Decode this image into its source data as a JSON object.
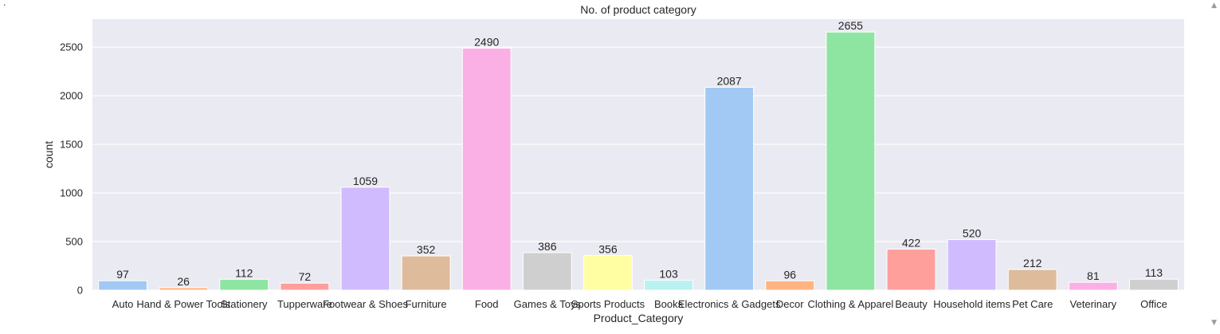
{
  "chart_data": {
    "type": "bar",
    "title": "No. of product category",
    "xlabel": "Product_Category",
    "ylabel": "count",
    "categories": [
      "Auto",
      "Hand & Power Tools",
      "Stationery",
      "Tupperware",
      "Footwear & Shoes",
      "Furniture",
      "Food",
      "Games & Toys",
      "Sports Products",
      "Books",
      "Electronics & Gadgets",
      "Decor",
      "Clothing & Apparel",
      "Beauty",
      "Household items",
      "Pet Care",
      "Veterinary",
      "Office"
    ],
    "values": [
      97,
      26,
      112,
      72,
      1059,
      352,
      2490,
      386,
      356,
      103,
      2087,
      96,
      2655,
      422,
      520,
      212,
      81,
      113
    ],
    "data_labels": [
      "97",
      "26",
      "112",
      "72",
      "1059",
      "352",
      "2490",
      "386",
      "356",
      "103",
      "2087",
      "96",
      "2655",
      "422",
      "520",
      "212",
      "81",
      "113"
    ],
    "colors": [
      "#a1c9f4",
      "#ffb482",
      "#8de5a1",
      "#ff9f9b",
      "#d0bbff",
      "#debb9b",
      "#fab0e4",
      "#cfcfcf",
      "#fffea3",
      "#b9f2f0",
      "#a1c9f4",
      "#ffb482",
      "#8de5a1",
      "#ff9f9b",
      "#d0bbff",
      "#debb9b",
      "#fab0e4",
      "#cfcfcf"
    ],
    "yticks": [
      0,
      500,
      1000,
      1500,
      2000,
      2500
    ],
    "ytick_labels": [
      "0",
      "500",
      "1000",
      "1500",
      "2000",
      "2500"
    ],
    "ylim": [
      0,
      2788
    ],
    "grid": true,
    "plot_background": "#eaeaf2",
    "grid_color": "#ffffff"
  },
  "ui": {
    "stray_mark": "·",
    "scroll_up": "▲",
    "scroll_down": "▼"
  }
}
